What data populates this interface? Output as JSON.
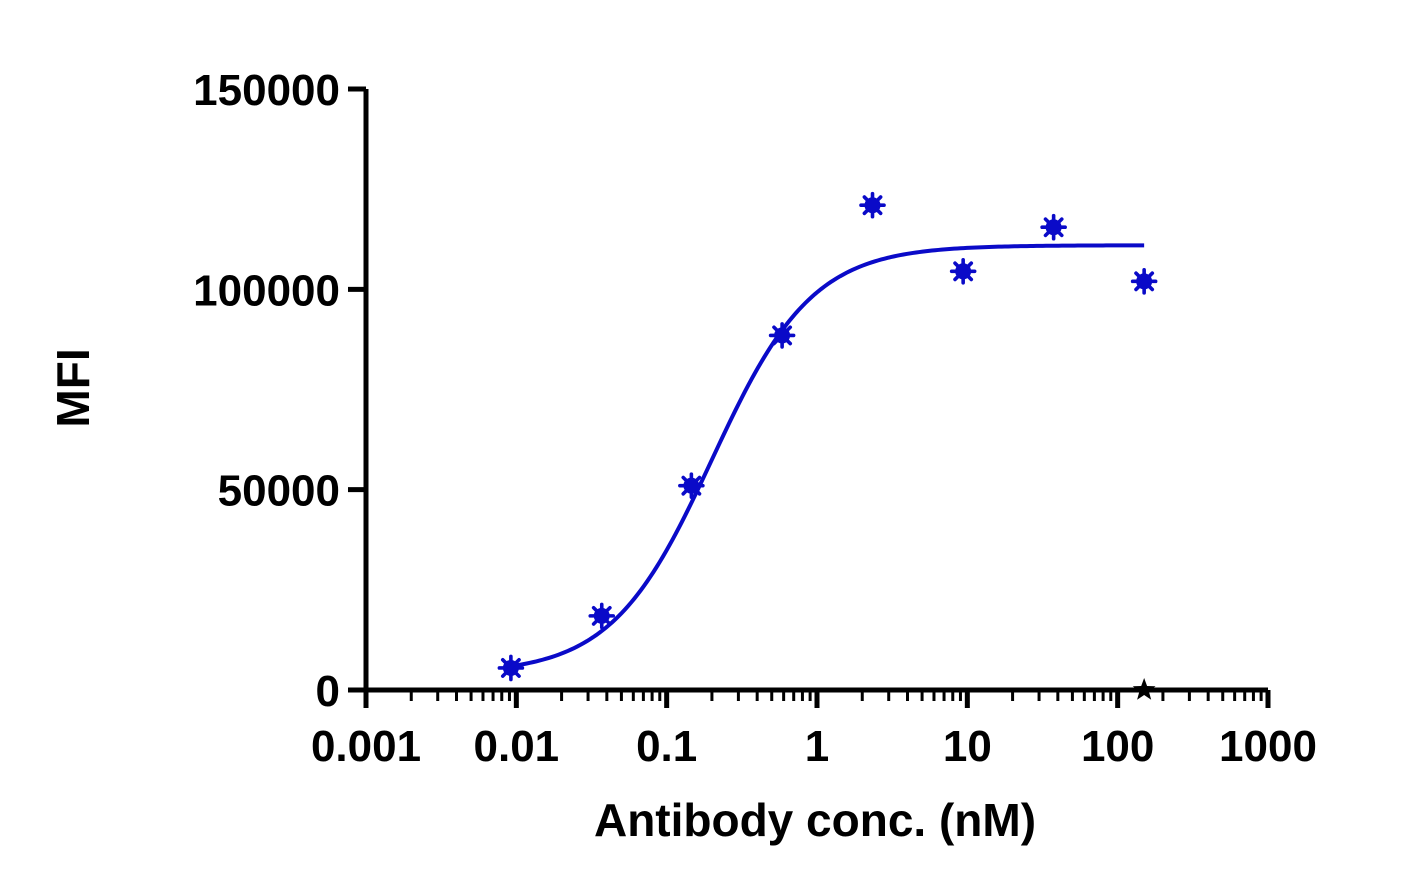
{
  "chart_data": {
    "type": "scatter",
    "xlabel": "Antibody conc. (nM)",
    "ylabel": "MFI",
    "x_scale": "log",
    "xlim": [
      0.001,
      1000
    ],
    "ylim": [
      0,
      150000
    ],
    "x_ticks": [
      {
        "value": 0.001,
        "label": "0.001"
      },
      {
        "value": 0.01,
        "label": "0.01"
      },
      {
        "value": 0.1,
        "label": "0.1"
      },
      {
        "value": 1,
        "label": "1"
      },
      {
        "value": 10,
        "label": "10"
      },
      {
        "value": 100,
        "label": "100"
      },
      {
        "value": 1000,
        "label": "1000"
      }
    ],
    "y_ticks": [
      {
        "value": 0,
        "label": "0"
      },
      {
        "value": 50000,
        "label": "50000"
      },
      {
        "value": 100000,
        "label": "100000"
      },
      {
        "value": 150000,
        "label": "150000"
      }
    ],
    "grid": false,
    "legend": "none",
    "series": [
      {
        "marker": "asterisk",
        "color": "#0a0ac8",
        "points": [
          {
            "x": 0.0092,
            "y": 5500
          },
          {
            "x": 0.037,
            "y": 18500
          },
          {
            "x": 0.146,
            "y": 51000
          },
          {
            "x": 0.586,
            "y": 88500
          },
          {
            "x": 2.34,
            "y": 121000
          },
          {
            "x": 9.38,
            "y": 104500
          },
          {
            "x": 37.5,
            "y": 115500
          },
          {
            "x": 150,
            "y": 102000
          }
        ],
        "fit": {
          "model": "four-parameter-logistic",
          "bottom": 4000,
          "top": 111000,
          "ec50": 0.2,
          "hill_slope": 1.3,
          "x_from": 0.0092,
          "x_to": 150
        }
      },
      {
        "marker": "star",
        "color": "#000000",
        "points": [
          {
            "x": 150,
            "y": 0
          }
        ]
      }
    ]
  }
}
